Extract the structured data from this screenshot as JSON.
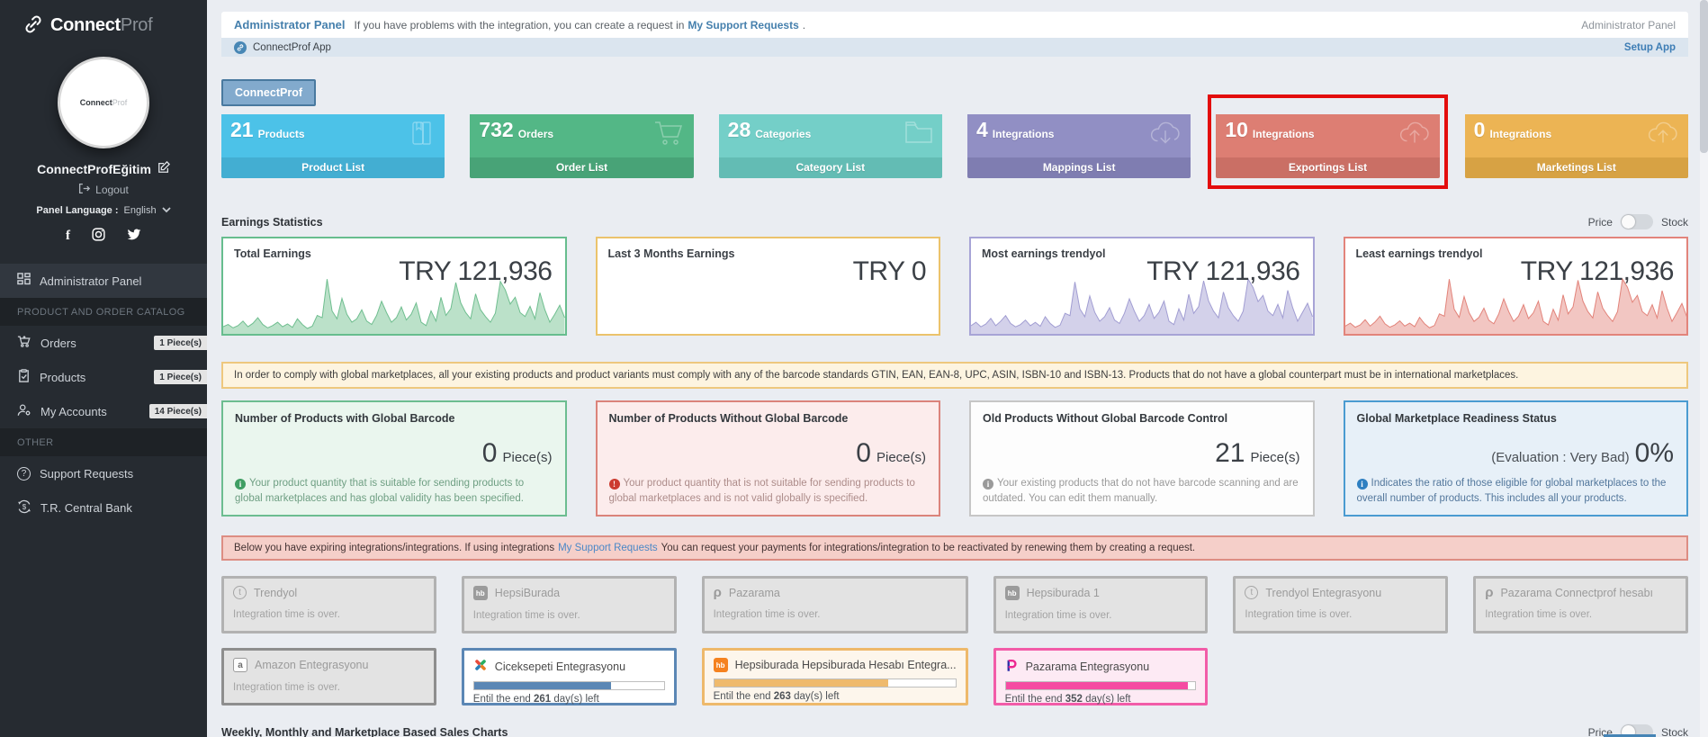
{
  "sidebar": {
    "logo_bold": "Connect",
    "logo_light": "Prof",
    "avatar_bold": "Connect",
    "avatar_light": "Prof",
    "username": "ConnectProfEğitim",
    "logout_label": "Logout",
    "language_label": "Panel Language :",
    "language_value": "English",
    "menu": {
      "admin": "Administrator Panel",
      "section1": "PRODUCT AND ORDER CATALOG",
      "orders": "Orders",
      "orders_badge": "1 Piece(s)",
      "products": "Products",
      "products_badge": "1 Piece(s)",
      "accounts": "My Accounts",
      "accounts_badge": "14 Piece(s)",
      "section2": "OTHER",
      "support": "Support Requests",
      "bank": "T.R. Central Bank"
    }
  },
  "header": {
    "title": "Administrator Panel",
    "message_before": "If you have problems with the integration, you can create a request in",
    "message_link": "My Support Requests",
    "message_after": ".",
    "right_label": "Administrator Panel"
  },
  "subheader": {
    "app_name": "ConnectProf App",
    "setup_link": "Setup App"
  },
  "tab_label": "ConnectProf",
  "stat_cards": [
    {
      "value": "21",
      "label": "Products",
      "footer": "Product List",
      "icon": "product-icon",
      "bg": "#4cc2e8",
      "footer_bg": "#43aed2",
      "highlighted": false
    },
    {
      "value": "732",
      "label": "Orders",
      "footer": "Order List",
      "icon": "cart-icon",
      "bg": "#53b786",
      "footer_bg": "#48a377",
      "highlighted": false
    },
    {
      "value": "28",
      "label": "Categories",
      "footer": "Category List",
      "icon": "folder-icon",
      "bg": "#74cfc8",
      "footer_bg": "#63bcb4",
      "highlighted": false
    },
    {
      "value": "4",
      "label": "Integrations",
      "footer": "Mappings List",
      "icon": "cloud-download-icon",
      "bg": "#918fc4",
      "footer_bg": "#7f7db1",
      "highlighted": false
    },
    {
      "value": "10",
      "label": "Integrations",
      "footer": "Exportings List",
      "icon": "cloud-upload-icon",
      "bg": "#dd7e73",
      "footer_bg": "#ca6f65",
      "highlighted": true,
      "highlight_color": "#e30d0d"
    },
    {
      "value": "0",
      "label": "Integrations",
      "footer": "Marketings List",
      "icon": "cloud-upload-icon",
      "bg": "#ecb454",
      "footer_bg": "#d7a244",
      "highlighted": false
    }
  ],
  "earnings": {
    "section_title": "Earnings Statistics",
    "toggle_left": "Price",
    "toggle_right": "Stock",
    "cards": [
      {
        "title": "Total Earnings",
        "value": "TRY 121,936",
        "border": "#67bd8e",
        "spark_color": "#6fbe8f",
        "spark_fill": "rgba(119,196,148,0.5)",
        "sparkline": [
          10,
          14,
          8,
          12,
          20,
          10,
          16,
          26,
          14,
          8,
          12,
          18,
          10,
          15,
          9,
          24,
          14,
          7,
          11,
          30,
          26,
          94,
          38,
          24,
          60,
          32,
          18,
          24,
          40,
          20,
          14,
          30,
          55,
          35,
          18,
          26,
          45,
          22,
          32,
          52,
          18,
          12,
          38,
          20,
          62,
          30,
          42,
          88,
          52,
          35,
          24,
          68,
          40,
          28,
          18,
          34,
          90,
          75,
          50,
          62,
          35,
          28,
          46,
          24,
          70,
          40,
          18,
          32,
          48,
          26
        ]
      },
      {
        "title": "Last 3 Months Earnings",
        "value": "TRY 0",
        "border": "#ebc36c",
        "spark_color": null,
        "spark_fill": null,
        "sparkline": []
      },
      {
        "title": "Most earnings trendyol",
        "value": "TRY 121,936",
        "border": "#a7a4d6",
        "spark_color": "#a19dd2",
        "spark_fill": "rgba(167,164,214,0.5)",
        "sparkline": [
          12,
          18,
          10,
          15,
          25,
          12,
          20,
          30,
          16,
          10,
          14,
          22,
          12,
          18,
          11,
          28,
          16,
          9,
          13,
          34,
          30,
          90,
          42,
          28,
          65,
          36,
          20,
          28,
          44,
          22,
          16,
          34,
          60,
          38,
          20,
          30,
          50,
          25,
          36,
          56,
          20,
          14,
          42,
          22,
          68,
          34,
          46,
          92,
          56,
          38,
          26,
          72,
          44,
          30,
          20,
          38,
          95,
          80,
          55,
          66,
          38,
          30,
          50,
          26,
          75,
          44,
          20,
          36,
          52,
          28
        ]
      },
      {
        "title": "Least earnings trendyol",
        "value": "TRY 121,936",
        "border": "#e2847b",
        "spark_color": "#e2837a",
        "spark_fill": "rgba(230,142,133,0.5)",
        "sparkline": [
          11,
          16,
          9,
          13,
          22,
          11,
          18,
          28,
          15,
          9,
          13,
          20,
          11,
          16,
          10,
          26,
          15,
          8,
          12,
          32,
          28,
          92,
          40,
          26,
          62,
          34,
          19,
          26,
          42,
          21,
          15,
          32,
          58,
          36,
          19,
          28,
          48,
          24,
          34,
          54,
          19,
          13,
          40,
          21,
          65,
          32,
          44,
          90,
          54,
          36,
          25,
          70,
          42,
          29,
          19,
          36,
          92,
          78,
          52,
          64,
          36,
          29,
          48,
          25,
          72,
          42,
          19,
          34,
          50,
          27
        ]
      }
    ]
  },
  "barcode_banner": "In order to comply with global marketplaces, all your existing products and product variants must comply with any of the barcode standards GTIN, EAN, EAN-8, UPC, ASIN, ISBN-10 and ISBN-13. Products that do not have a global counterpart must be in international marketplaces.",
  "barcode_cards": [
    {
      "title": "Number of Products with Global Barcode",
      "value": "0",
      "unit": "Piece(s)",
      "prefix": "",
      "note": "Your product quantity that is suitable for sending products to global marketplaces and has global validity has been specified.",
      "border": "#6cbd90",
      "bg": "#eaf6ee"
    },
    {
      "title": "Number of Products Without Global Barcode",
      "value": "0",
      "unit": "Piece(s)",
      "prefix": "",
      "note": "Your product quantity that is not suitable for sending products to global marketplaces and is not valid globally is specified.",
      "border": "#db837b",
      "bg": "#fcecec"
    },
    {
      "title": "Old Products Without Global Barcode Control",
      "value": "21",
      "unit": "Piece(s)",
      "prefix": "",
      "note": "Your existing products that do not have barcode scanning and are outdated. You can edit them manually.",
      "border": "#c6c6c6",
      "bg": "#fdfdfd"
    },
    {
      "title": "Global Marketplace Readiness Status",
      "value": "0%",
      "unit": "",
      "prefix": "(Evaluation : Very Bad)",
      "note": "Indicates the ratio of those eligible for global marketplaces to the overall number of products. This includes all your products.",
      "border": "#4a9bd1",
      "bg": "#e7f0f8"
    }
  ],
  "expiring_banner": {
    "before": "Below you have expiring integrations/integrations. If using integrations",
    "link": "My Support Requests",
    "after": "You can request your payments for integrations/integration to be reactivated by renewing them by creating a request."
  },
  "integrations": [
    {
      "name": "Trendyol",
      "icon": "trendyol-icon",
      "state": "expired",
      "status": "Integration time is over."
    },
    {
      "name": "HepsiBurada",
      "icon": "hepsiburada-icon",
      "state": "expired",
      "status": "Integration time is over."
    },
    {
      "name": "Pazarama",
      "icon": "pazarama-icon",
      "state": "expired",
      "status": "Integration time is over."
    },
    {
      "name": "Hepsiburada 1",
      "icon": "hepsiburada-icon",
      "state": "expired",
      "status": "Integration time is over."
    },
    {
      "name": "Trendyol Entegrasyonu",
      "icon": "trendyol-icon",
      "state": "expired",
      "status": "Integration time is over."
    },
    {
      "name": "Pazarama Connectprof hesabı",
      "icon": "pazarama-icon",
      "state": "expired",
      "status": "Integration time is over."
    },
    {
      "name": "Amazon Entegrasyonu",
      "icon": "amazon-icon",
      "state": "expired",
      "status": "Integration time is over."
    },
    {
      "name": "Ciceksepeti Entegrasyonu",
      "icon": "ciceksepeti-icon",
      "state": "active",
      "days_before": "Entil the end",
      "days": "261",
      "days_after": "day(s) left",
      "progress": 72,
      "accent": "#5b87b5",
      "border": "#5b87b5",
      "bg": "#ffffff"
    },
    {
      "name": "Hepsiburada Hepsiburada Hesabı Entegra...",
      "icon": "hepsiburada-orange-icon",
      "state": "active",
      "days_before": "Entil the end",
      "days": "263",
      "days_after": "day(s) left",
      "progress": 72,
      "accent": "#efba6d",
      "border": "#eeb96b",
      "bg": "#fdf6ec"
    },
    {
      "name": "Pazarama Entegrasyonu",
      "icon": "pazarama-color-icon",
      "state": "active",
      "days_before": "Entil the end",
      "days": "352",
      "days_after": "day(s) left",
      "progress": 96,
      "accent": "#f54ba2",
      "border": "#f25ca8",
      "bg": "#fdeaf4"
    }
  ],
  "footer": {
    "title": "Weekly, Monthly and Marketplace Based Sales Charts",
    "toggle_left": "Price",
    "toggle_right": "Stock"
  }
}
